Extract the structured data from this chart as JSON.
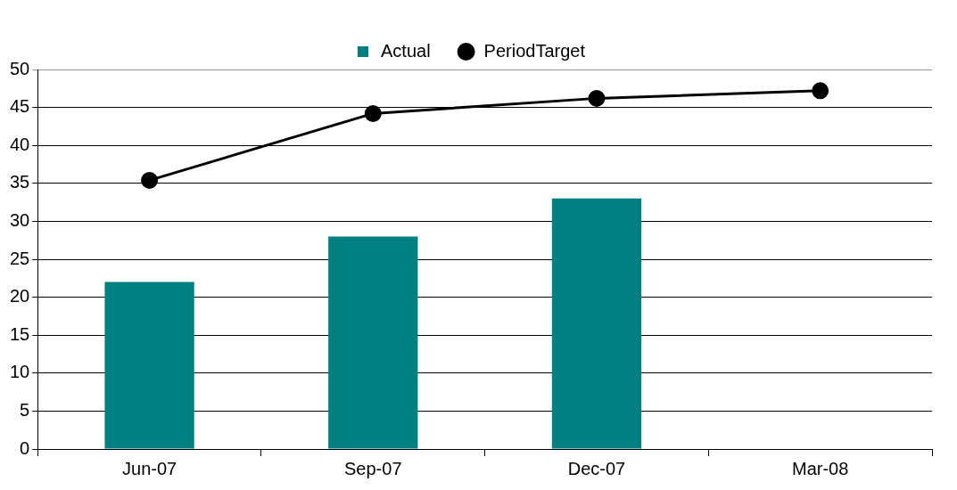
{
  "chart_data": {
    "type": "bar",
    "categories": [
      "Jun-07",
      "Sep-07",
      "Dec-07",
      "Mar-08"
    ],
    "series": [
      {
        "name": "Actual",
        "color": "#008080",
        "values": [
          22,
          28,
          33,
          null
        ]
      },
      {
        "name": "PeriodTarget",
        "type": "line",
        "color": "#000000",
        "values": [
          35.4,
          44.2,
          46.2,
          47.2
        ]
      }
    ],
    "ylim": [
      0,
      50
    ],
    "yticks": [
      0,
      5,
      10,
      15,
      20,
      25,
      30,
      35,
      40,
      45,
      50
    ],
    "grid": "y",
    "legend": "top",
    "marker": "circle"
  }
}
